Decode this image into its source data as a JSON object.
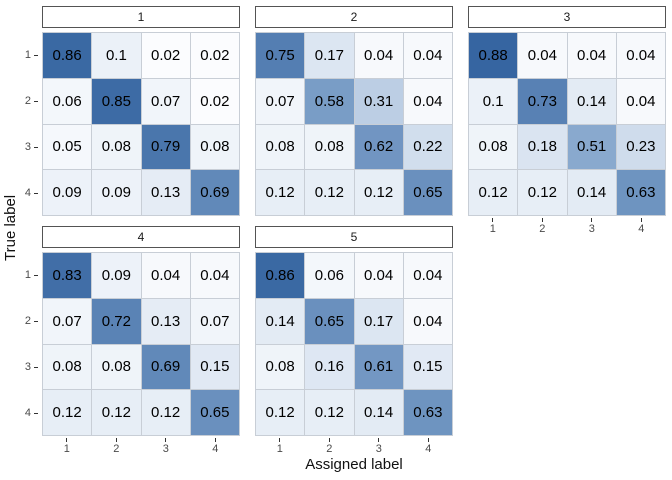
{
  "chart_data": {
    "type": "heatmap",
    "title": "",
    "xlabel": "Assigned label",
    "ylabel": "True label",
    "x_ticks": [
      "1",
      "2",
      "3",
      "4"
    ],
    "y_ticks": [
      "1",
      "2",
      "3",
      "4"
    ],
    "value_range": [
      0,
      1
    ],
    "legend": "none",
    "grid": "off",
    "layout": {
      "columns": 3,
      "rows": 2
    },
    "facets": [
      {
        "label": "1",
        "values": [
          [
            0.86,
            0.1,
            0.02,
            0.02
          ],
          [
            0.06,
            0.85,
            0.07,
            0.02
          ],
          [
            0.05,
            0.08,
            0.79,
            0.08
          ],
          [
            0.09,
            0.09,
            0.13,
            0.69
          ]
        ]
      },
      {
        "label": "2",
        "values": [
          [
            0.75,
            0.17,
            0.04,
            0.04
          ],
          [
            0.07,
            0.58,
            0.31,
            0.04
          ],
          [
            0.08,
            0.08,
            0.62,
            0.22
          ],
          [
            0.12,
            0.12,
            0.12,
            0.65
          ]
        ]
      },
      {
        "label": "3",
        "values": [
          [
            0.88,
            0.04,
            0.04,
            0.04
          ],
          [
            0.1,
            0.73,
            0.14,
            0.04
          ],
          [
            0.08,
            0.18,
            0.51,
            0.23
          ],
          [
            0.12,
            0.12,
            0.14,
            0.63
          ]
        ]
      },
      {
        "label": "4",
        "values": [
          [
            0.83,
            0.09,
            0.04,
            0.04
          ],
          [
            0.07,
            0.72,
            0.13,
            0.07
          ],
          [
            0.08,
            0.08,
            0.69,
            0.15
          ],
          [
            0.12,
            0.12,
            0.12,
            0.65
          ]
        ]
      },
      {
        "label": "5",
        "values": [
          [
            0.86,
            0.06,
            0.04,
            0.04
          ],
          [
            0.14,
            0.65,
            0.17,
            0.04
          ],
          [
            0.08,
            0.16,
            0.61,
            0.15
          ],
          [
            0.12,
            0.12,
            0.14,
            0.63
          ]
        ]
      }
    ],
    "colorscale": {
      "low": "#FFFFFF",
      "high": "#1A4E91",
      "stops": [
        [
          0.0,
          "#FFFFFF"
        ],
        [
          0.1,
          "#EBF1F8"
        ],
        [
          0.2,
          "#D6E1EF"
        ],
        [
          0.3,
          "#BED0E5"
        ],
        [
          0.4,
          "#A5BEDA"
        ],
        [
          0.5,
          "#8BABCF"
        ],
        [
          0.6,
          "#7599C4"
        ],
        [
          0.7,
          "#5F87B8"
        ],
        [
          0.8,
          "#4874AB"
        ],
        [
          0.9,
          "#31619E"
        ],
        [
          1.0,
          "#1A4E91"
        ]
      ]
    }
  },
  "colors": {
    "background": "#FFFFFF",
    "strip_bg": "#FFFFFF",
    "strip_border": "#545454",
    "cell_border": "#C8CED6",
    "cell_text": "#000000",
    "tick_mark": "#333333",
    "tick_label": "#4A4A4A",
    "axis_title": "#111111"
  }
}
